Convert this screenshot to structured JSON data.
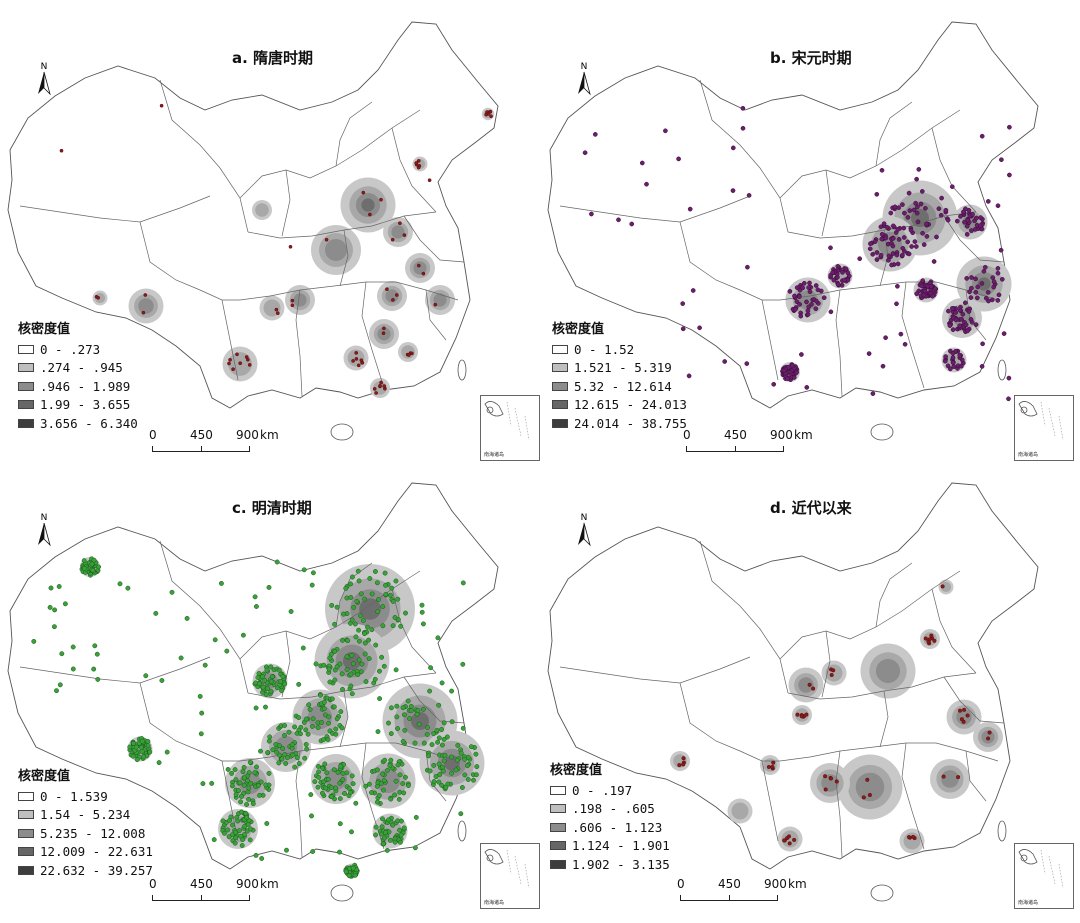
{
  "north_label": "N",
  "scale_bar": {
    "labels": [
      "0",
      "450",
      "900",
      "km"
    ]
  },
  "inset_caption": "南海诸岛",
  "legend_title": "核密度值",
  "colors": {
    "class1": "#ffffff",
    "class2": "#bfbfbf",
    "class3": "#8c8c8c",
    "class4": "#666666",
    "class5": "#3d3d3d",
    "dot_a": "#8b1a1a",
    "dot_b": "#5b1a5b",
    "dot_c": "#3aa03a",
    "dot_d": "#8b1a1a"
  },
  "panels": [
    {
      "id": "a",
      "title": "a. 隋唐时期",
      "legend": [
        "0 - .273",
        ".274 - .945",
        ".946 - 1.989",
        "1.99 - 3.655",
        "3.656 - 6.340"
      ]
    },
    {
      "id": "b",
      "title": "b. 宋元时期",
      "legend": [
        "0 - 1.52",
        "1.521 - 5.319",
        "5.32 - 12.614",
        "12.615 - 24.013",
        "24.014 - 38.755"
      ]
    },
    {
      "id": "c",
      "title": "c. 明清时期",
      "legend": [
        "0 - 1.539",
        "1.54 - 5.234",
        "5.235 - 12.008",
        "12.009 - 22.631",
        "22.632 - 39.257"
      ]
    },
    {
      "id": "d",
      "title": "d. 近代以来",
      "legend": [
        "0 - .197",
        ".198 - .605",
        ".606 - 1.123",
        "1.124 - 1.901",
        "1.902 - 3.135"
      ]
    }
  ]
}
